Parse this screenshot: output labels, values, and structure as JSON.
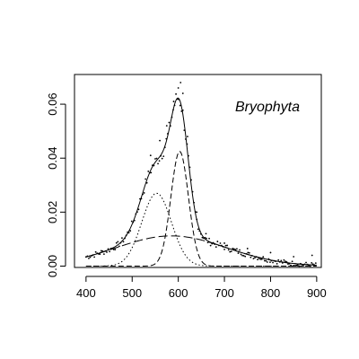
{
  "chart_data": {
    "type": "line",
    "title": "",
    "xlabel": "",
    "ylabel": "",
    "annotation": "Bryophyta",
    "xlim": [
      375,
      910
    ],
    "ylim": [
      -0.0005,
      0.071
    ],
    "x_ticks": [
      400,
      500,
      600,
      700,
      800,
      900
    ],
    "y_ticks": [
      0.0,
      0.02,
      0.04,
      0.06
    ],
    "x_tick_labels": [
      "400",
      "500",
      "600",
      "700",
      "800",
      "900"
    ],
    "y_tick_labels": [
      "0.00",
      "0.02",
      "0.04",
      "0.06"
    ],
    "grid": false,
    "legend": "none",
    "colors": {
      "line": "#000000",
      "points": "#000000"
    },
    "components": [
      {
        "name": "",
        "style": "dotted",
        "shape": "gaussian",
        "amplitude": 0.027,
        "mean": 553,
        "sd": 32
      },
      {
        "name": "",
        "style": "dashed",
        "shape": "gaussian",
        "amplitude": 0.0425,
        "mean": 603,
        "sd": 19
      },
      {
        "name": "",
        "style": "longdash",
        "shape": "gaussian",
        "amplitude": 0.0112,
        "mean": 585,
        "sd": 120
      }
    ],
    "fit": {
      "name": "",
      "style": "solid",
      "note": "sum of components"
    },
    "observed_points": {
      "x_range": [
        400,
        900
      ],
      "step": 3,
      "extra_samples": [
        [
          540,
          0.041
        ],
        [
          560,
          0.0465
        ],
        [
          575,
          0.052
        ],
        [
          590,
          0.061
        ],
        [
          600,
          0.066
        ],
        [
          605,
          0.068
        ],
        [
          610,
          0.064
        ],
        [
          620,
          0.048
        ],
        [
          640,
          0.02
        ],
        [
          660,
          0.012
        ],
        [
          700,
          0.0085
        ],
        [
          750,
          0.0065
        ],
        [
          800,
          0.005
        ],
        [
          850,
          0.0035
        ],
        [
          890,
          0.004
        ]
      ]
    }
  }
}
